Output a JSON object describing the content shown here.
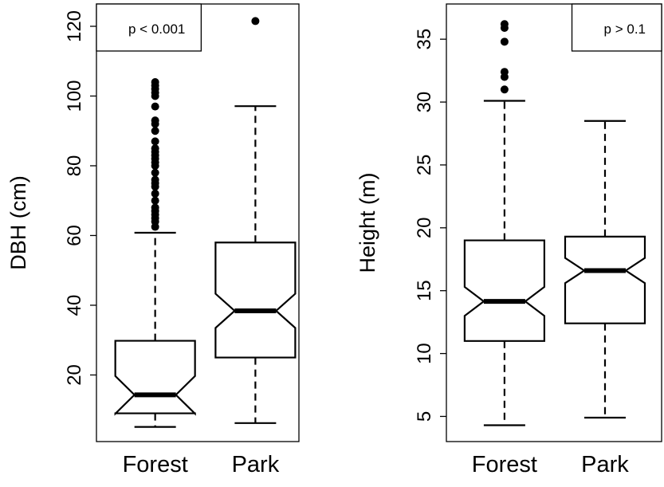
{
  "chart_data": [
    {
      "type": "boxplot",
      "ylabel": "DBH (cm)",
      "annotation": "p < 0.001",
      "annotation_corner": "topleft",
      "categories": [
        "Forest",
        "Park"
      ],
      "ylim": [
        0.9,
        126.4
      ],
      "yticks": [
        20,
        40,
        60,
        80,
        100,
        120
      ],
      "color": "#000000",
      "boxes": [
        {
          "whislo": 5.1,
          "q1": 9.0,
          "med": 14.3,
          "q3": 29.8,
          "whishi": 60.8,
          "notch_lo": 8.9,
          "notch_hi": 19.7,
          "outliers": [
            62.5,
            64,
            65,
            66,
            67,
            68,
            70,
            72,
            74,
            75,
            76,
            78,
            80,
            81,
            82,
            83,
            84,
            85,
            87,
            90,
            92,
            93,
            97,
            100,
            101,
            102,
            103,
            104
          ]
        },
        {
          "whislo": 6.2,
          "q1": 25.0,
          "med": 38.4,
          "q3": 58.0,
          "whishi": 97.1,
          "notch_lo": 33.5,
          "notch_hi": 43.3,
          "outliers": [
            121.5
          ]
        }
      ]
    },
    {
      "type": "boxplot",
      "ylabel": "Height (m)",
      "annotation": "p > 0.1",
      "annotation_corner": "topright",
      "categories": [
        "Forest",
        "Park"
      ],
      "ylim": [
        3.0,
        37.8
      ],
      "yticks": [
        5,
        10,
        15,
        20,
        25,
        30,
        35
      ],
      "color": "#000000",
      "boxes": [
        {
          "whislo": 4.3,
          "q1": 11.0,
          "med": 14.15,
          "q3": 19.0,
          "whishi": 30.1,
          "notch_lo": 13.0,
          "notch_hi": 15.3,
          "outliers": [
            31.0,
            32.0,
            32.4,
            34.8,
            35.9,
            36.2
          ]
        },
        {
          "whislo": 4.9,
          "q1": 12.4,
          "med": 16.6,
          "q3": 19.3,
          "whishi": 28.5,
          "notch_lo": 15.6,
          "notch_hi": 17.6,
          "outliers": []
        }
      ]
    }
  ]
}
